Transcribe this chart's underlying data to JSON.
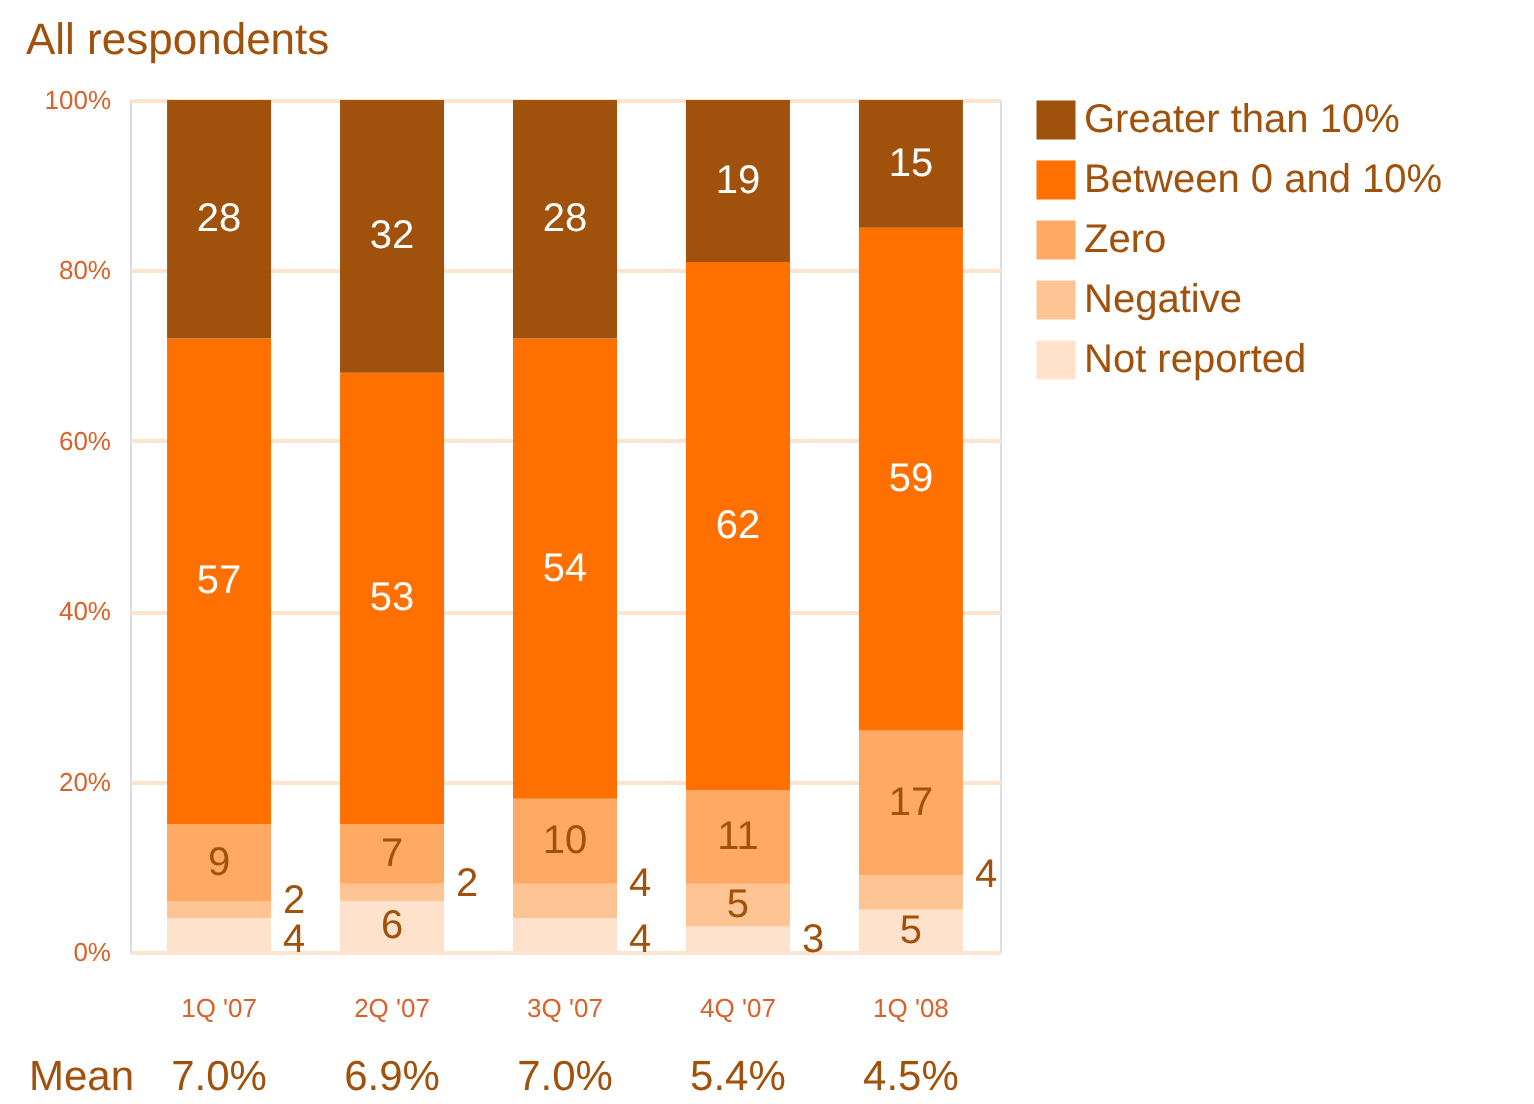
{
  "chart_data": {
    "type": "bar",
    "title": "All respondents",
    "stacked": true,
    "data_labels": true,
    "categories": [
      "1Q '07",
      "2Q '07",
      "3Q '07",
      "4Q '07",
      "1Q '08"
    ],
    "series": [
      {
        "name": "Not reported",
        "color": "#ffe2cc",
        "values": [
          4,
          6,
          4,
          3,
          5
        ]
      },
      {
        "name": "Negative",
        "color": "#ffc494",
        "values": [
          2,
          2,
          4,
          5,
          4
        ]
      },
      {
        "name": "Zero",
        "color": "#ffa965",
        "values": [
          9,
          7,
          10,
          11,
          17
        ]
      },
      {
        "name": "Between 0 and 10%",
        "color": "#ff7000",
        "values": [
          57,
          53,
          54,
          62,
          59
        ]
      },
      {
        "name": "Greater than 10%",
        "color": "#a0520c",
        "values": [
          28,
          32,
          28,
          19,
          15
        ]
      }
    ],
    "ylim": [
      0,
      100
    ],
    "yticks": [
      {
        "value": 0,
        "label": "0%"
      },
      {
        "value": 20,
        "label": "20%"
      },
      {
        "value": 40,
        "label": "40%"
      },
      {
        "value": 60,
        "label": "60%"
      },
      {
        "value": 80,
        "label": "80%"
      },
      {
        "value": 100,
        "label": "100%"
      }
    ],
    "grid": "y",
    "legend": "top right",
    "annotations": [
      "Mean",
      "7.0%",
      "6.9%",
      "7.0%",
      "5.4%",
      "4.5%"
    ]
  }
}
